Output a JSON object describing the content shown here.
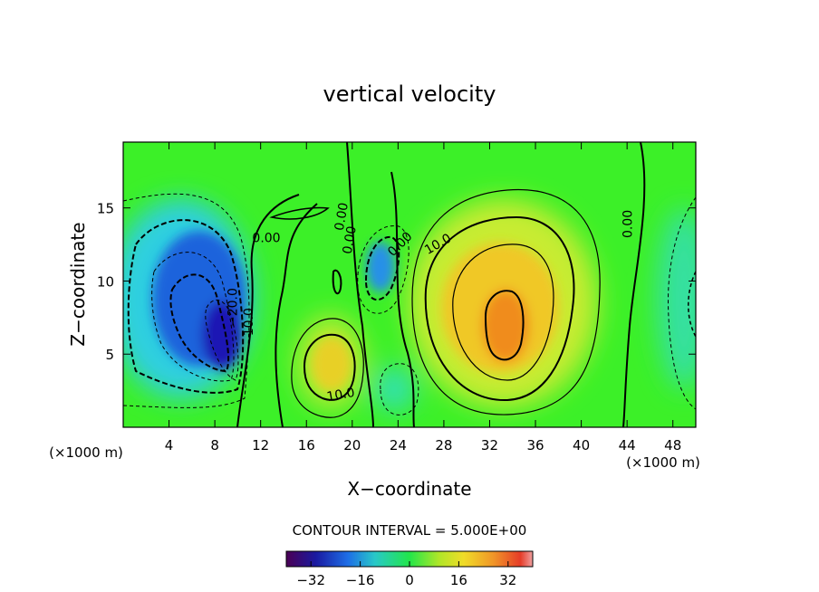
{
  "chart_data": {
    "type": "heatmap",
    "title": "vertical velocity",
    "xlabel": "X−coordinate",
    "ylabel": "Z−coordinate",
    "x_unit_label": "(×1000 m)",
    "xlim": [
      0,
      50
    ],
    "ylim": [
      0,
      19.5
    ],
    "x_ticks": [
      4,
      8,
      12,
      16,
      20,
      24,
      28,
      32,
      36,
      40,
      44,
      48
    ],
    "y_ticks": [
      5,
      10,
      15
    ],
    "contour_interval_label": "CONTOUR INTERVAL = 5.000E+00",
    "contour_labels": [
      {
        "text": "0.00",
        "x": 12.5,
        "z": 12.9,
        "angle": 0
      },
      {
        "text": "0.00",
        "x": 19.1,
        "z": 14.4,
        "angle": -80
      },
      {
        "text": "0.00",
        "x": 19.8,
        "z": 12.8,
        "angle": -80
      },
      {
        "text": "0.00",
        "x": 24.2,
        "z": 12.5,
        "angle": -45
      },
      {
        "text": "10.0",
        "x": 27.5,
        "z": 12.5,
        "angle": -30
      },
      {
        "text": "0.00",
        "x": 44.1,
        "z": 13.9,
        "angle": -90
      },
      {
        "text": "10.0",
        "x": 11.0,
        "z": 7.2,
        "angle": -90
      },
      {
        "text": "−20.0",
        "x": 9.6,
        "z": 8.2,
        "angle": -90
      },
      {
        "text": "10.0",
        "x": 19.0,
        "z": 2.2,
        "angle": -10
      }
    ],
    "field_features": [
      {
        "kind": "min",
        "x": 7.5,
        "z": 8.0,
        "value": -32
      },
      {
        "kind": "min",
        "x": 22.5,
        "z": 10.8,
        "value": -12
      },
      {
        "kind": "min",
        "x": 23.5,
        "z": 3.0,
        "value": -5
      },
      {
        "kind": "min",
        "x": 49.5,
        "z": 8.5,
        "value": -4
      },
      {
        "kind": "max",
        "x": 33.0,
        "z": 7.4,
        "value": 22
      },
      {
        "kind": "max",
        "x": 18.2,
        "z": 4.2,
        "value": 14
      }
    ],
    "colorbar": {
      "range": [
        -40,
        40
      ],
      "ticks": [
        -32,
        -16,
        0,
        16,
        32
      ],
      "tick_labels": [
        "−32",
        "−16",
        "0",
        "16",
        "32"
      ]
    }
  }
}
